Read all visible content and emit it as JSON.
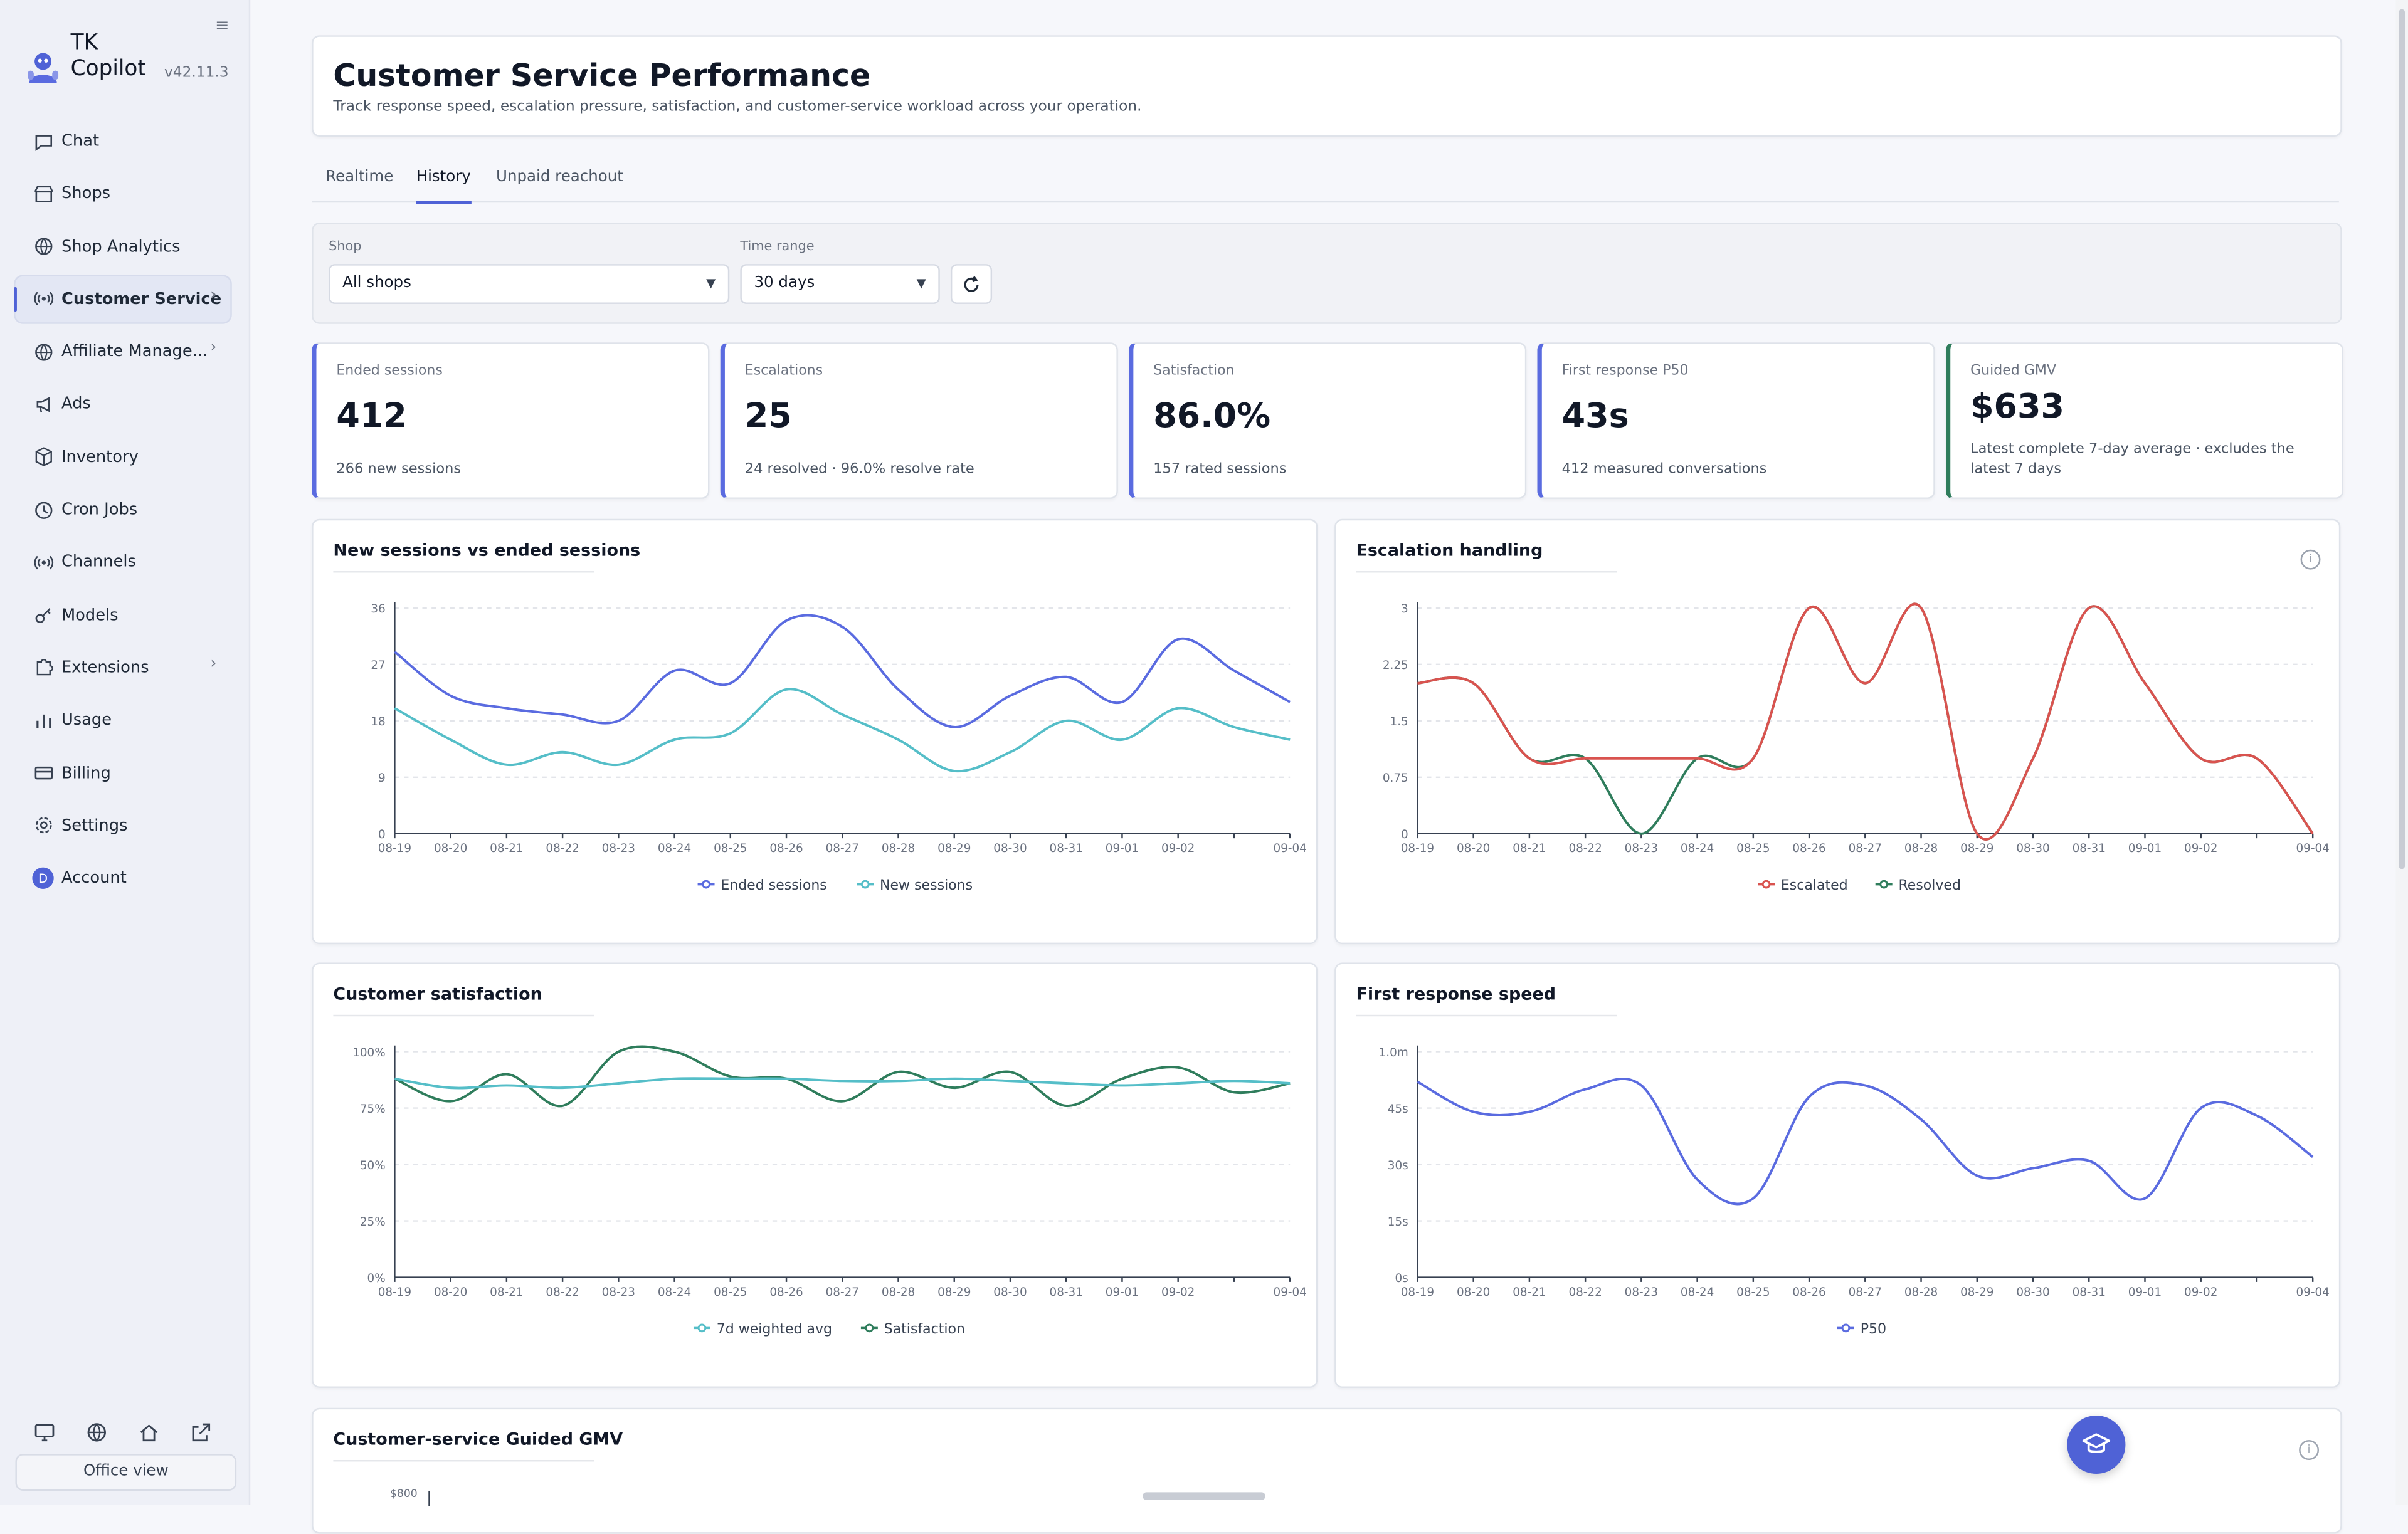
{
  "app": {
    "name_line1": "TK",
    "name_line2": "Copilot",
    "version": "v42.11.3"
  },
  "sidebar": {
    "items": [
      {
        "label": "Chat",
        "icon": "chat-icon"
      },
      {
        "label": "Shops",
        "icon": "store-icon"
      },
      {
        "label": "Shop Analytics",
        "icon": "globe-icon"
      },
      {
        "label": "Customer Service",
        "icon": "radio-icon",
        "active": true,
        "chevron": true
      },
      {
        "label": "Affiliate Manage...",
        "icon": "globe-icon",
        "chevron": true
      },
      {
        "label": "Ads",
        "icon": "megaphone-icon"
      },
      {
        "label": "Inventory",
        "icon": "box-icon"
      },
      {
        "label": "Cron Jobs",
        "icon": "clock-icon"
      },
      {
        "label": "Channels",
        "icon": "radio-icon"
      },
      {
        "label": "Models",
        "icon": "key-icon"
      },
      {
        "label": "Extensions",
        "icon": "puzzle-icon",
        "chevron": true
      },
      {
        "label": "Usage",
        "icon": "bar-chart-icon"
      },
      {
        "label": "Billing",
        "icon": "card-icon"
      },
      {
        "label": "Settings",
        "icon": "gear-icon"
      },
      {
        "label": "Account",
        "icon": "avatar",
        "avatar_letter": "D"
      }
    ],
    "footer_icons": [
      "monitor-icon",
      "globe-icon",
      "home-icon",
      "external-link-icon"
    ],
    "office_view_label": "Office view"
  },
  "header": {
    "title": "Customer Service Performance",
    "subtitle": "Track response speed, escalation pressure, satisfaction, and customer-service workload across your operation."
  },
  "tabs": [
    {
      "label": "Realtime",
      "active": false
    },
    {
      "label": "History",
      "active": true
    },
    {
      "label": "Unpaid reachout",
      "active": false
    }
  ],
  "filters": {
    "shop_label": "Shop",
    "shop_value": "All shops",
    "range_label": "Time range",
    "range_value": "30 days"
  },
  "kpis": [
    {
      "label": "Ended sessions",
      "value": "412",
      "sub": "266 new sessions"
    },
    {
      "label": "Escalations",
      "value": "25",
      "sub": "24 resolved · 96.0% resolve rate"
    },
    {
      "label": "Satisfaction",
      "value": "86.0%",
      "sub": "157 rated sessions"
    },
    {
      "label": "First response P50",
      "value": "43s",
      "sub": "412 measured conversations"
    },
    {
      "label": "Guided GMV",
      "value": "$633",
      "sub1": "Latest complete 7-day average · excludes the",
      "sub2": "latest 7 days"
    }
  ],
  "colors": {
    "ended": "#5a6be0",
    "new": "#55bec8",
    "escalated": "#d9534f",
    "resolved": "#2f7d5c",
    "satisfaction": "#2f7d5c",
    "weighted": "#55bec8",
    "p50": "#5a6be0"
  },
  "chart_data": [
    {
      "type": "line",
      "title": "New sessions vs ended sessions",
      "x": [
        "08-19",
        "08-20",
        "08-21",
        "08-22",
        "08-23",
        "08-24",
        "08-25",
        "08-26",
        "08-27",
        "08-28",
        "08-29",
        "08-30",
        "08-31",
        "09-01",
        "09-02",
        "09-03",
        "09-04"
      ],
      "x_tick_labels": [
        "08-19",
        "08-20",
        "08-21",
        "08-22",
        "08-23",
        "08-24",
        "08-25",
        "08-26",
        "08-27",
        "08-28",
        "08-29",
        "08-30",
        "08-31",
        "09-01",
        "09-02",
        "",
        "09-04"
      ],
      "y_ticks": [
        "0",
        "9",
        "18",
        "27",
        "36"
      ],
      "ylim": [
        0,
        36
      ],
      "series": [
        {
          "name": "Ended sessions",
          "values": [
            29,
            22,
            20,
            19,
            18,
            26,
            24,
            34,
            33,
            23,
            17,
            22,
            25,
            21,
            31,
            26,
            21
          ]
        },
        {
          "name": "New sessions",
          "values": [
            20,
            15,
            11,
            13,
            11,
            15,
            16,
            23,
            19,
            15,
            10,
            13,
            18,
            15,
            20,
            17,
            15
          ]
        }
      ],
      "legend": "bottom"
    },
    {
      "type": "line",
      "title": "Escalation handling",
      "x": [
        "08-19",
        "08-20",
        "08-21",
        "08-22",
        "08-23",
        "08-24",
        "08-25",
        "08-26",
        "08-27",
        "08-28",
        "08-29",
        "08-30",
        "08-31",
        "09-01",
        "09-02",
        "09-03",
        "09-04"
      ],
      "x_tick_labels": [
        "08-19",
        "08-20",
        "08-21",
        "08-22",
        "08-23",
        "08-24",
        "08-25",
        "08-26",
        "08-27",
        "08-28",
        "08-29",
        "08-30",
        "08-31",
        "09-01",
        "09-02",
        "",
        "09-04"
      ],
      "y_ticks": [
        "0",
        "0.75",
        "1.5",
        "2.25",
        "3"
      ],
      "ylim": [
        0,
        3
      ],
      "series": [
        {
          "name": "Escalated",
          "values": [
            2,
            2,
            1,
            1,
            1,
            1,
            1,
            3,
            2,
            3,
            0,
            1,
            3,
            2,
            1,
            1,
            0
          ]
        },
        {
          "name": "Resolved",
          "values": [
            2,
            2,
            1,
            1,
            0,
            1,
            1,
            3,
            2,
            3,
            0,
            1,
            3,
            2,
            1,
            1,
            0
          ]
        }
      ],
      "legend": "bottom"
    },
    {
      "type": "line",
      "title": "Customer satisfaction",
      "x": [
        "08-19",
        "08-20",
        "08-21",
        "08-22",
        "08-23",
        "08-24",
        "08-25",
        "08-26",
        "08-27",
        "08-28",
        "08-29",
        "08-30",
        "08-31",
        "09-01",
        "09-02",
        "09-03",
        "09-04"
      ],
      "x_tick_labels": [
        "08-19",
        "08-20",
        "08-21",
        "08-22",
        "08-23",
        "08-24",
        "08-25",
        "08-26",
        "08-27",
        "08-28",
        "08-29",
        "08-30",
        "08-31",
        "09-01",
        "09-02",
        "",
        "09-04"
      ],
      "y_ticks": [
        "0%",
        "25%",
        "50%",
        "75%",
        "100%"
      ],
      "ylim": [
        0,
        100
      ],
      "series": [
        {
          "name": "7d weighted avg",
          "values": [
            88,
            84,
            85,
            84,
            86,
            88,
            88,
            88,
            87,
            87,
            88,
            87,
            86,
            85,
            86,
            87,
            86
          ]
        },
        {
          "name": "Satisfaction",
          "values": [
            88,
            78,
            90,
            76,
            100,
            100,
            89,
            88,
            78,
            91,
            84,
            91,
            76,
            88,
            93,
            82,
            86
          ]
        }
      ],
      "legend": "bottom"
    },
    {
      "type": "line",
      "title": "First response speed",
      "x": [
        "08-19",
        "08-20",
        "08-21",
        "08-22",
        "08-23",
        "08-24",
        "08-25",
        "08-26",
        "08-27",
        "08-28",
        "08-29",
        "08-30",
        "08-31",
        "09-01",
        "09-02",
        "09-03",
        "09-04"
      ],
      "x_tick_labels": [
        "08-19",
        "08-20",
        "08-21",
        "08-22",
        "08-23",
        "08-24",
        "08-25",
        "08-26",
        "08-27",
        "08-28",
        "08-29",
        "08-30",
        "08-31",
        "09-01",
        "09-02",
        "",
        "09-04"
      ],
      "y_ticks": [
        "0s",
        "15s",
        "30s",
        "45s",
        "1.0m"
      ],
      "ylim": [
        0,
        60
      ],
      "series": [
        {
          "name": "P50",
          "values": [
            52,
            44,
            44,
            50,
            51,
            26,
            21,
            48,
            51,
            42,
            27,
            29,
            31,
            21,
            45,
            43,
            32
          ]
        }
      ],
      "legend": "bottom"
    },
    {
      "type": "line",
      "title": "Customer-service Guided GMV",
      "y_ticks": [
        "$800"
      ],
      "series": []
    }
  ]
}
